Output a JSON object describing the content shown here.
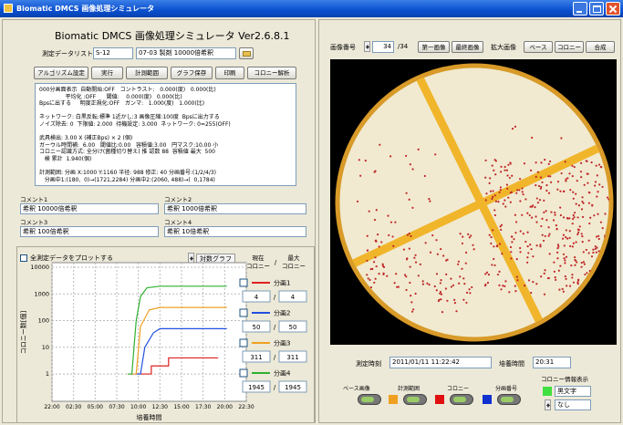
{
  "window": {
    "title": "Biomatic DMCS 画像処理シミュレータ"
  },
  "left": {
    "header": "Biomatic DMCS 画像処理シミュレータ Ver2.6.8.1",
    "data_list_label": "測定データリスト",
    "data_id": "S-12",
    "data_name": "07-03 製剤 10000倍希釈",
    "buttons": [
      "アルゴリズム設定",
      "実行",
      "計測範囲",
      "グラフ保存",
      "印刷",
      "コロニー解析"
    ],
    "info_lines": [
      "000分画面表示  自動開始:OFF   コントラスト:   0.000(度)   0.000(比)",
      "               平均化 :OFF      閾値:    0.000(度)   0.000(比)",
      "Bpsに出する     明度正規化:OFF   ガンマ:   1.000(度)   1.000(比)",
      "",
      "ネットワーク: 白黒反転:標準 1近かし:3 画像圧縮:100度  Bpsに出力する",
      "ノイズ除去: 0  下限値: 2.000  待機設定: 3.000  ネットワーク: 0=255(OFF)",
      "",
      "武具検出: 3.00 X (補正Bps) × 2 (個)",
      "ガーウル時間補:  6.00   閾値比:0.00   容積値:3.00   円マスク:10.00 小",
      "コロニー認識方式: 全分け(菌種切り替え) 推 認数 88  容積値 最大  500",
      "   検 累計  1.940(個)",
      "",
      "計測範囲: 分画 X:1000 Y:1160 半径: 988 修正: 40 分画番号:(1/2/4/3)",
      "   分画中1:(180,  0)→(1721,2284) 分画中2:(2060, 488)→(  0,1784)"
    ],
    "comments": [
      {
        "label": "コメント1",
        "value": "希釈 10000倍希釈"
      },
      {
        "label": "コメント2",
        "value": "希釈 1000倍希釈"
      },
      {
        "label": "コメント3",
        "value": "希釈 100倍希釈"
      },
      {
        "label": "コメント4",
        "value": "希釈 10倍希釈"
      }
    ]
  },
  "chart_data": {
    "type": "line",
    "plot_all_label": "全測定データをプロットする",
    "log_button": "対数グラフ",
    "xlabel": "培養時間",
    "ylabel": "コロニー数[個]",
    "log_scale": true,
    "grid": true,
    "ylim": [
      0.13,
      10000
    ],
    "yticks": [
      1,
      10,
      100,
      1000,
      10000
    ],
    "xlim": [
      0,
      9
    ],
    "xticks": [
      {
        "value": 0,
        "label": "22:00"
      },
      {
        "value": 1,
        "label": "02:30"
      },
      {
        "value": 2,
        "label": "05:00"
      },
      {
        "value": 3,
        "label": "07:30"
      },
      {
        "value": 4,
        "label": "10:00"
      },
      {
        "value": 5,
        "label": "12:30"
      },
      {
        "value": 6,
        "label": "15:00"
      },
      {
        "value": 7,
        "label": "17:30"
      },
      {
        "value": 8,
        "label": "20:00"
      },
      {
        "value": 9,
        "label": "22:30"
      }
    ],
    "current_header": [
      "現在",
      "コロニー"
    ],
    "max_header": [
      "最大",
      "コロニー"
    ],
    "separator": "/",
    "series": [
      {
        "name": "分画1",
        "color": "#e02020",
        "x": [
          3.9,
          4.6,
          4.6,
          5.4,
          5.4,
          7.7
        ],
        "values": [
          1,
          1,
          2,
          2,
          4,
          4
        ],
        "current": 4,
        "max": 4
      },
      {
        "name": "分画2",
        "color": "#2050e0",
        "x": [
          3.6,
          4.1,
          4.3,
          4.7,
          5.0,
          8.1
        ],
        "values": [
          1,
          1,
          10,
          35,
          50,
          50
        ],
        "current": 50,
        "max": 50
      },
      {
        "name": "分画3",
        "color": "#f0a020",
        "x": [
          3.5,
          3.9,
          4.1,
          4.5,
          5.0,
          8.1
        ],
        "values": [
          1,
          1,
          60,
          250,
          311,
          311
        ],
        "current": 311,
        "max": 311
      },
      {
        "name": "分画4",
        "color": "#30b030",
        "x": [
          3.5,
          3.7,
          3.9,
          4.1,
          4.4,
          5.0,
          8.1
        ],
        "values": [
          1,
          1,
          100,
          800,
          1700,
          1945,
          1945
        ],
        "current": 1945,
        "max": 1945
      }
    ]
  },
  "right": {
    "image_no_label": "画像番号",
    "image_no": 34,
    "image_total": "/34",
    "first_button": "第一画像",
    "last_button": "最終画像",
    "zoom_label": "拡大画像",
    "zoom_buttons": [
      "ベース",
      "コロニー",
      "合成"
    ],
    "time_label": "測定時刻",
    "time_value": "2011/01/11 11:22:42",
    "culture_label": "培養時間",
    "culture_value": "20:31",
    "toggles": [
      "ベース画像",
      "計測範囲",
      "コロニー",
      "分画番号"
    ],
    "colony_info_label": "コロニー情報表示",
    "text_color_value": "黒文字",
    "number_value": "なし"
  }
}
